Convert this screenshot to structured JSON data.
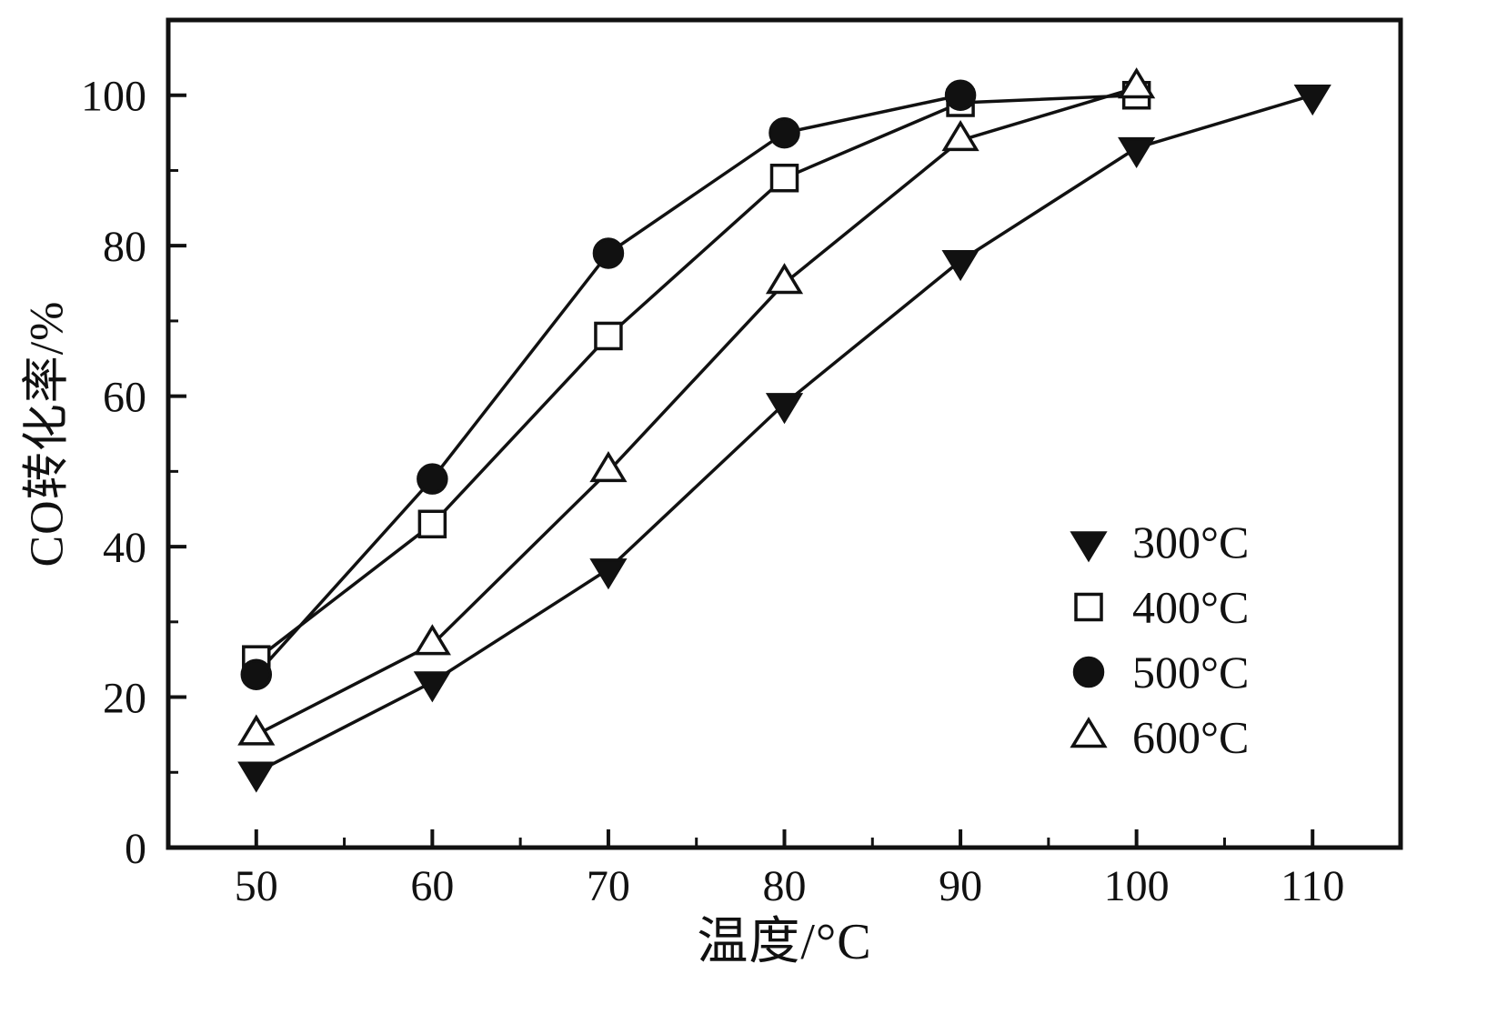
{
  "figure": {
    "background": "#ffffff",
    "ink_color": "#111111"
  },
  "chart_data": {
    "type": "line",
    "title": "",
    "xlabel": "温度/°C",
    "ylabel": "CO转化率/%",
    "xlim": [
      45,
      115
    ],
    "ylim": [
      0,
      110
    ],
    "x_ticks": [
      50,
      60,
      70,
      80,
      90,
      100,
      110
    ],
    "y_ticks": [
      0,
      20,
      40,
      60,
      80,
      100
    ],
    "x_minor_step": 5,
    "y_minor_step": 10,
    "grid": false,
    "legend_position": "inside-lower-right",
    "series": [
      {
        "name": "300°C",
        "marker": "triangle-down",
        "fill": "filled",
        "x": [
          50,
          60,
          70,
          80,
          90,
          100,
          110
        ],
        "y": [
          10,
          22,
          37,
          59,
          78,
          93,
          100
        ]
      },
      {
        "name": "400°C",
        "marker": "square",
        "fill": "open",
        "x": [
          50,
          60,
          70,
          80,
          90,
          100
        ],
        "y": [
          25,
          43,
          68,
          89,
          99,
          100
        ]
      },
      {
        "name": "500°C",
        "marker": "circle",
        "fill": "filled",
        "x": [
          50,
          60,
          70,
          80,
          90
        ],
        "y": [
          23,
          49,
          79,
          95,
          100
        ]
      },
      {
        "name": "600°C",
        "marker": "triangle-up",
        "fill": "open",
        "x": [
          50,
          60,
          70,
          80,
          90,
          100
        ],
        "y": [
          15,
          27,
          50,
          75,
          94,
          101
        ]
      }
    ]
  }
}
